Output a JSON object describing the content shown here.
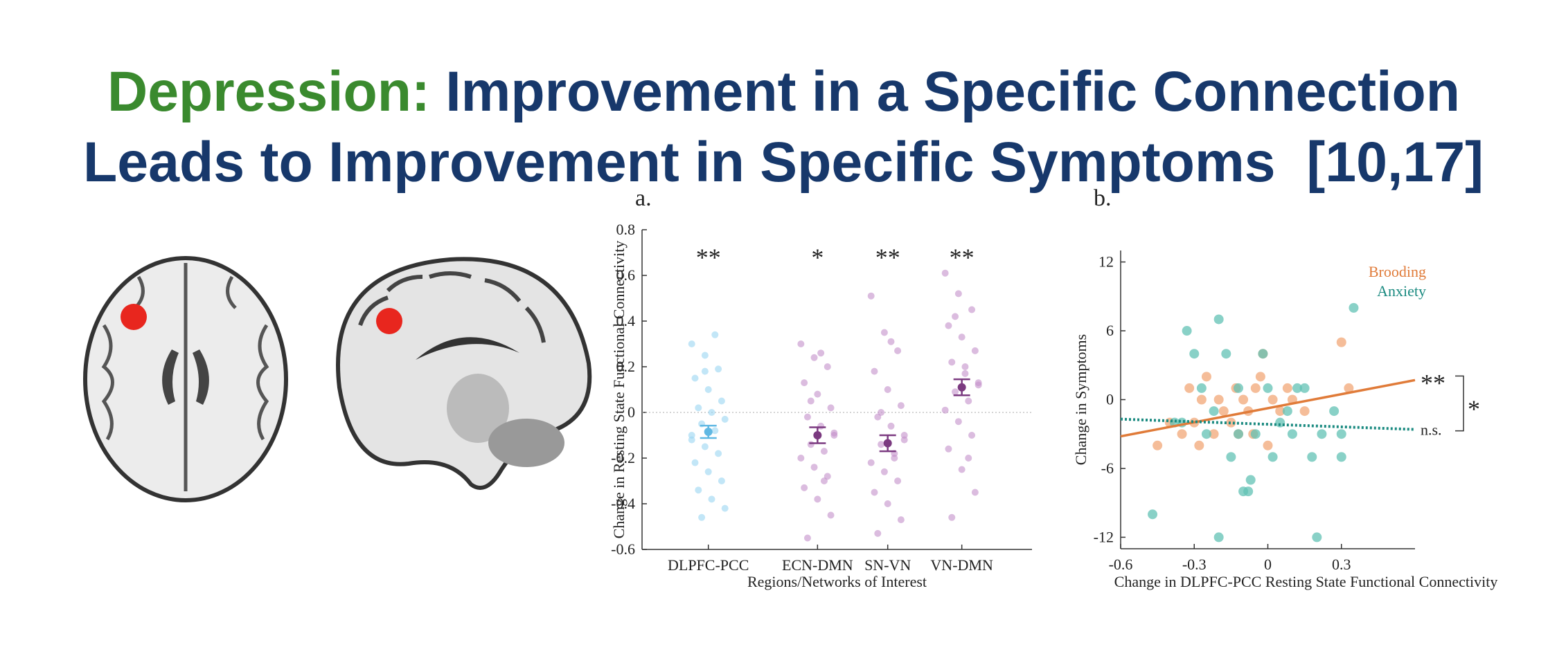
{
  "title_highlight": "Depression:",
  "title_lines": [
    "Improvement in a Specific Connection",
    "Leads to Improvement in Specific Symptoms  [10,17]"
  ],
  "chart_data": [
    {
      "type": "strip",
      "panel_label": "a.",
      "y_label": "Change in Resting State Functional Connectivity",
      "x_label": "Regions/Networks of Interest",
      "categories": [
        "DLPFC-PCC",
        "ECN-DMN",
        "SN-VN",
        "VN-DMN"
      ],
      "significance": [
        "**",
        "*",
        "**",
        "**"
      ],
      "colors": [
        "#9ad6f2",
        "#c38fca",
        "#c38fca",
        "#c38fca"
      ],
      "mean_colors": [
        "#5fb8e3",
        "#7b3a80",
        "#7b3a80",
        "#7b3a80"
      ],
      "means": [
        -0.085,
        -0.1,
        -0.135,
        0.11
      ],
      "errors": [
        0.027,
        0.035,
        0.035,
        0.035
      ],
      "points": [
        [
          0.3,
          0.25,
          0.19,
          0.15,
          0.1,
          0.05,
          0.02,
          0.0,
          -0.03,
          -0.05,
          -0.08,
          -0.12,
          -0.15,
          -0.18,
          -0.22,
          -0.26,
          -0.3,
          -0.34,
          -0.38,
          -0.42,
          -0.46,
          0.34,
          -0.1,
          0.18
        ],
        [
          0.3,
          0.24,
          0.2,
          0.13,
          0.08,
          0.02,
          -0.02,
          -0.06,
          -0.1,
          -0.14,
          -0.17,
          -0.2,
          -0.24,
          -0.28,
          -0.33,
          -0.38,
          -0.45,
          -0.55,
          0.26,
          -0.09,
          0.05,
          -0.3
        ],
        [
          0.51,
          0.35,
          0.27,
          0.18,
          0.1,
          0.03,
          -0.02,
          -0.06,
          -0.1,
          -0.14,
          -0.18,
          -0.22,
          -0.26,
          -0.3,
          -0.35,
          -0.4,
          -0.47,
          -0.53,
          0.31,
          -0.12,
          0.0,
          -0.2
        ],
        [
          0.61,
          0.52,
          0.45,
          0.38,
          0.33,
          0.27,
          0.22,
          0.17,
          0.13,
          0.09,
          0.05,
          0.01,
          -0.04,
          -0.1,
          -0.16,
          -0.25,
          -0.35,
          -0.46,
          0.2,
          0.12,
          0.42,
          -0.2
        ]
      ],
      "ylim": [
        -0.6,
        0.8
      ],
      "yticks": [
        -0.6,
        -0.4,
        -0.2,
        0,
        0.2,
        0.4,
        0.6,
        0.8
      ]
    },
    {
      "type": "scatter",
      "panel_label": "b.",
      "y_label": "Change in Symptoms",
      "x_label": "Change in DLPFC-PCC Resting State Functional Connectivity",
      "xlim": [
        -0.6,
        0.6
      ],
      "xticks": [
        -0.6,
        -0.3,
        0,
        0.3
      ],
      "ylim": [
        -13,
        13
      ],
      "yticks": [
        -12,
        -6,
        0,
        6,
        12
      ],
      "comparison": "*",
      "series": [
        {
          "name": "Brooding",
          "color": "#f2a777",
          "line_color": "#e07b39",
          "line_style": "solid",
          "significance": "**",
          "x": [
            -0.45,
            -0.4,
            -0.35,
            -0.32,
            -0.3,
            -0.28,
            -0.25,
            -0.22,
            -0.2,
            -0.18,
            -0.15,
            -0.12,
            -0.1,
            -0.08,
            -0.05,
            -0.03,
            0.0,
            0.02,
            0.05,
            0.08,
            0.1,
            -0.02,
            0.3,
            0.33,
            0.15,
            -0.13,
            -0.27,
            -0.06
          ],
          "values": [
            -4,
            -2,
            -3,
            1,
            -2,
            -4,
            2,
            -3,
            0,
            -1,
            -2,
            -3,
            0,
            -1,
            1,
            2,
            -4,
            0,
            -1,
            1,
            0,
            4,
            5,
            1,
            -1,
            1,
            0,
            -3
          ],
          "fit_x": [
            -0.6,
            0.6
          ],
          "fit_values": [
            -3.2,
            1.7
          ]
        },
        {
          "name": "Anxiety",
          "color": "#62c2b4",
          "line_color": "#1a8a80",
          "line_style": "dotted",
          "significance": "n.s.",
          "x": [
            -0.47,
            -0.33,
            -0.3,
            -0.27,
            -0.25,
            -0.22,
            -0.2,
            -0.17,
            -0.15,
            -0.12,
            -0.1,
            -0.08,
            -0.07,
            -0.05,
            -0.02,
            0.0,
            0.02,
            0.05,
            0.08,
            0.12,
            0.15,
            0.18,
            0.2,
            0.27,
            0.3,
            0.3,
            0.35,
            -0.2,
            -0.35,
            -0.12,
            0.1,
            -0.38,
            0.22
          ],
          "values": [
            -10,
            6,
            4,
            1,
            -3,
            -1,
            7,
            4,
            -5,
            -3,
            -8,
            -8,
            -7,
            -3,
            4,
            1,
            -5,
            -2,
            -1,
            1,
            1,
            -5,
            -12,
            -1,
            -3,
            -5,
            8,
            -12,
            -2,
            1,
            -3,
            -2,
            -3
          ],
          "fit_x": [
            -0.6,
            0.6
          ],
          "fit_values": [
            -1.7,
            -2.6
          ]
        }
      ]
    }
  ]
}
